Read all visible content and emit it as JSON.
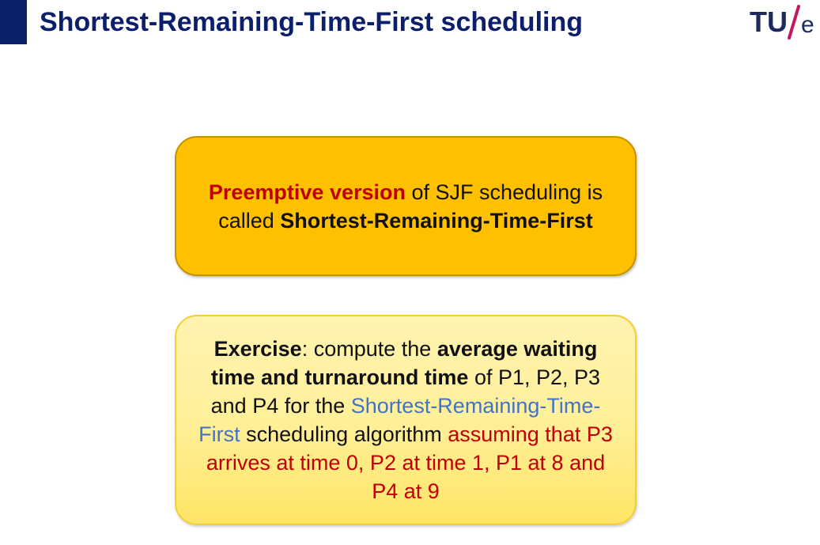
{
  "slide": {
    "title": "Shortest-Remaining-Time-First scheduling",
    "logo": {
      "letters": "TU",
      "separator": "/",
      "suffix": "e",
      "slash_color": "#c8175e",
      "text_color": "#1c2a5e"
    },
    "colors": {
      "accent": "#0b1f6b",
      "highlight_red": "#c00000",
      "highlight_blue": "#4472c4",
      "primary_box": "#ffc000",
      "secondary_box": "#fff09a"
    }
  },
  "primary_box": {
    "highlight": "Preemptive version",
    "text1": " of SJF scheduling is called ",
    "emphasis": "Shortest-Remaining-Time-First"
  },
  "exercise_box": {
    "label": "Exercise",
    "text1": ": compute the ",
    "emphasis": "average waiting time and turnaround time",
    "text2": " of P1, P2, P3 and P4 for the ",
    "algorithm": "Shortest-Remaining-Time-First",
    "text3": " scheduling algorithm ",
    "condition": "assuming that P3 arrives at time 0, P2 at time 1, P1 at 8 and P4 at 9"
  }
}
